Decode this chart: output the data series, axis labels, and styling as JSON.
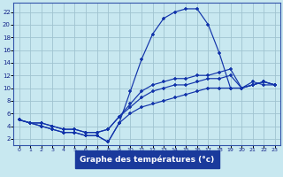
{
  "xlabel": "Graphe des températures (°c)",
  "bg_color": "#c8e8f0",
  "grid_color": "#a0c4d0",
  "line_color": "#1133aa",
  "spine_color": "#3355aa",
  "xlim": [
    -0.5,
    23.5
  ],
  "ylim": [
    1.0,
    23.5
  ],
  "x_ticks": [
    0,
    1,
    2,
    3,
    4,
    5,
    6,
    7,
    8,
    9,
    10,
    11,
    12,
    13,
    14,
    15,
    16,
    17,
    18,
    19,
    20,
    21,
    22,
    23
  ],
  "y_ticks": [
    2,
    4,
    6,
    8,
    10,
    12,
    14,
    16,
    18,
    20,
    22
  ],
  "curve1_y": [
    5,
    4.5,
    4,
    3.5,
    3,
    3,
    2.5,
    2.5,
    1.5,
    4.5,
    9.5,
    14.5,
    18.5,
    21,
    22,
    22.5,
    22.5,
    20,
    15.5,
    10,
    10,
    11,
    10.5,
    10.5
  ],
  "curve2_y": [
    5,
    4.5,
    4.5,
    4,
    3.5,
    3.5,
    3,
    3,
    3.5,
    5.5,
    7.5,
    9.5,
    10.5,
    11,
    11.5,
    11.5,
    12,
    12,
    12.5,
    13,
    10,
    10.5,
    11,
    10.5
  ],
  "curve3_y": [
    5,
    4.5,
    4.5,
    4,
    3.5,
    3.5,
    3,
    3,
    3.5,
    5.5,
    7,
    8.5,
    9.5,
    10,
    10.5,
    10.5,
    11,
    11.5,
    11.5,
    12,
    10,
    10.5,
    11,
    10.5
  ],
  "curve4_y": [
    5,
    4.5,
    4,
    3.5,
    3,
    3,
    2.5,
    2.5,
    1.5,
    4.5,
    6,
    7,
    7.5,
    8,
    8.5,
    9,
    9.5,
    10,
    10,
    10,
    10,
    10.5,
    11,
    10.5
  ],
  "xlabel_bg": "#1a3a9c",
  "xlabel_fg": "#ffffff"
}
